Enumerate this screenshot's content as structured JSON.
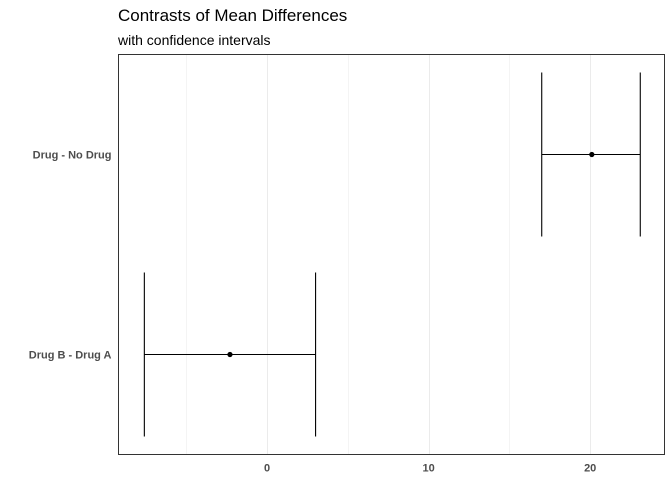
{
  "chart_data": {
    "type": "errorbar",
    "title": "Contrasts of Mean Differences",
    "subtitle": "with confidence intervals",
    "xlabel": "",
    "ylabel": "",
    "orientation": "horizontal",
    "categories": [
      "Drug - No Drug",
      "Drug B - Drug A"
    ],
    "estimates": [
      20.1,
      -2.3
    ],
    "lower": [
      17.0,
      -7.6
    ],
    "upper": [
      23.1,
      3.0
    ],
    "xlim": [
      -9.2,
      24.6
    ],
    "x_ticks": [
      0,
      10,
      20
    ],
    "x_tick_labels": [
      "0",
      "10",
      "20"
    ],
    "grid": "vertical major and minor",
    "legend": "none"
  },
  "colors": {
    "background": "#ffffff",
    "panel_border": "#333333",
    "grid_major": "#ebebeb",
    "grid_minor": "#f4f4f4",
    "marks": "#000000",
    "label_text": "#4d4d4d"
  }
}
